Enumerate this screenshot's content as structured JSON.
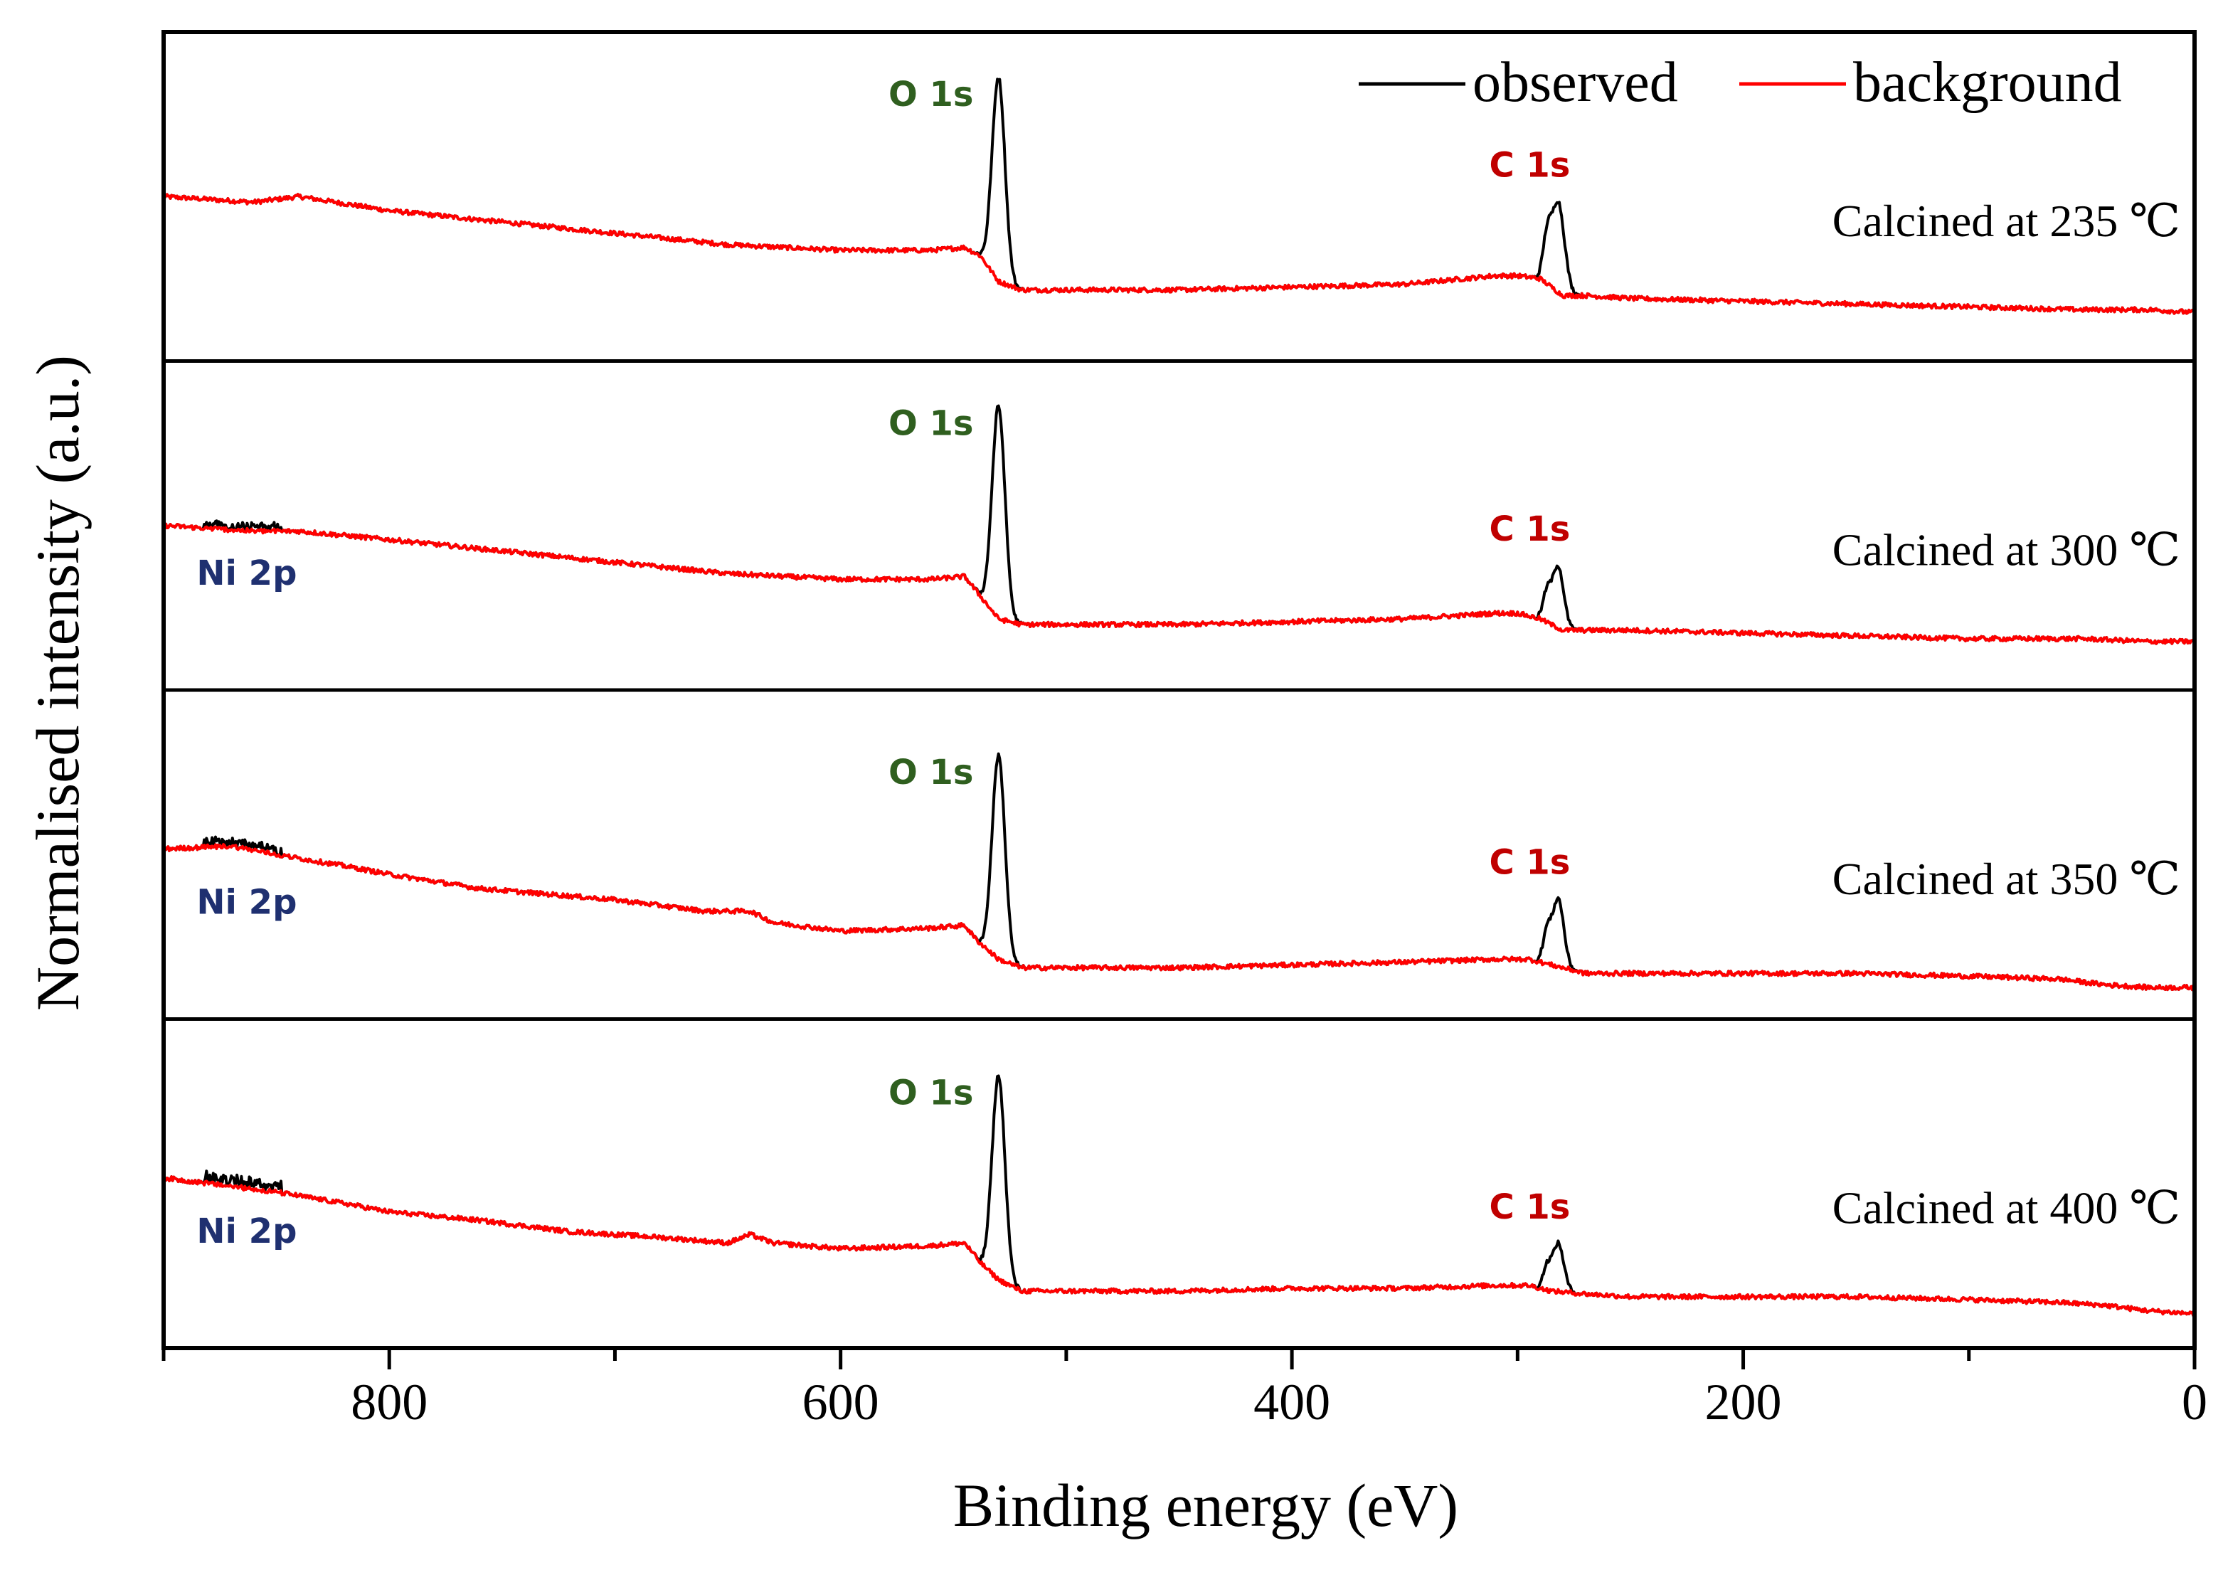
{
  "chart_data": {
    "type": "line",
    "title": "",
    "xlabel": "Binding energy (eV)",
    "ylabel": "Normalised intensity (a.u.)",
    "xlim": [
      900,
      0
    ],
    "xticks": [
      800,
      600,
      400,
      200,
      0
    ],
    "minor_xticks": [
      900,
      700,
      500,
      300,
      100
    ],
    "legend": {
      "position": "top-right",
      "entries": [
        {
          "name": "observed",
          "color": "#000000"
        },
        {
          "name": "background",
          "color": "#ff0000"
        }
      ]
    },
    "series_colors": {
      "observed": "#000000",
      "background": "#ff0000"
    },
    "panels": [
      {
        "label": "Calcined at 235 ℃",
        "ylim": [
          0,
          100
        ],
        "background": [
          [
            900,
            50
          ],
          [
            860,
            48
          ],
          [
            840,
            50
          ],
          [
            800,
            45
          ],
          [
            750,
            41
          ],
          [
            700,
            37
          ],
          [
            650,
            33
          ],
          [
            600,
            31
          ],
          [
            560,
            31
          ],
          [
            545,
            32
          ],
          [
            538,
            29
          ],
          [
            530,
            20
          ],
          [
            520,
            17
          ],
          [
            500,
            17
          ],
          [
            450,
            17
          ],
          [
            400,
            18
          ],
          [
            350,
            19
          ],
          [
            310,
            22
          ],
          [
            300,
            22
          ],
          [
            290,
            21
          ],
          [
            280,
            15
          ],
          [
            270,
            15
          ],
          [
            250,
            14
          ],
          [
            200,
            13
          ],
          [
            150,
            12
          ],
          [
            100,
            11
          ],
          [
            50,
            10
          ],
          [
            20,
            10
          ],
          [
            0,
            9
          ]
        ],
        "peaks": [
          {
            "label": "O 1s",
            "label_color": "#2f5f1f",
            "center": 530,
            "width": 4,
            "height": 72
          },
          {
            "label": "C 1s",
            "label_color": "#c00000",
            "center": 282,
            "width": 4,
            "height": 32
          }
        ]
      },
      {
        "label": "Calcined at 300 ℃",
        "ylim": [
          0,
          100
        ],
        "background": [
          [
            900,
            50
          ],
          [
            860,
            48
          ],
          [
            840,
            48
          ],
          [
            800,
            45
          ],
          [
            750,
            41
          ],
          [
            700,
            37
          ],
          [
            650,
            33
          ],
          [
            600,
            31
          ],
          [
            560,
            31
          ],
          [
            545,
            32
          ],
          [
            538,
            25
          ],
          [
            530,
            17
          ],
          [
            520,
            15
          ],
          [
            500,
            15
          ],
          [
            450,
            15
          ],
          [
            400,
            16
          ],
          [
            350,
            17
          ],
          [
            310,
            19
          ],
          [
            300,
            19
          ],
          [
            290,
            17
          ],
          [
            280,
            13
          ],
          [
            270,
            13
          ],
          [
            250,
            13
          ],
          [
            200,
            12
          ],
          [
            150,
            11
          ],
          [
            100,
            10
          ],
          [
            50,
            10
          ],
          [
            20,
            9
          ],
          [
            0,
            9
          ]
        ],
        "peaks": [
          {
            "label": "O 1s",
            "label_color": "#2f5f1f",
            "center": 530,
            "width": 4,
            "height": 75
          },
          {
            "label": "C 1s",
            "label_color": "#c00000",
            "center": 282,
            "width": 3.5,
            "height": 22
          },
          {
            "label": "Ni 2p",
            "label_color": "#1f3070",
            "center": 860,
            "width": 15,
            "height": 3
          }
        ]
      },
      {
        "label": "Calcined at 350 ℃",
        "ylim": [
          0,
          100
        ],
        "background": [
          [
            900,
            52
          ],
          [
            870,
            53
          ],
          [
            850,
            50
          ],
          [
            820,
            46
          ],
          [
            800,
            43
          ],
          [
            760,
            38
          ],
          [
            700,
            34
          ],
          [
            660,
            30
          ],
          [
            640,
            30
          ],
          [
            630,
            26
          ],
          [
            600,
            23
          ],
          [
            560,
            24
          ],
          [
            545,
            25
          ],
          [
            540,
            20
          ],
          [
            530,
            13
          ],
          [
            520,
            10
          ],
          [
            500,
            10
          ],
          [
            450,
            10
          ],
          [
            400,
            11
          ],
          [
            350,
            12
          ],
          [
            310,
            13
          ],
          [
            295,
            13
          ],
          [
            285,
            11
          ],
          [
            270,
            8
          ],
          [
            250,
            8
          ],
          [
            200,
            8
          ],
          [
            150,
            8
          ],
          [
            100,
            7
          ],
          [
            60,
            6
          ],
          [
            40,
            4
          ],
          [
            20,
            3
          ],
          [
            0,
            3
          ]
        ],
        "peaks": [
          {
            "label": "O 1s",
            "label_color": "#2f5f1f",
            "center": 530,
            "width": 4,
            "height": 72
          },
          {
            "label": "C 1s",
            "label_color": "#c00000",
            "center": 282,
            "width": 3.5,
            "height": 24
          },
          {
            "label": "Ni 2p",
            "label_color": "#1f3070",
            "center": 860,
            "width": 15,
            "height": 4
          }
        ]
      },
      {
        "label": "Calcined at 400 ℃",
        "ylim": [
          0,
          100
        ],
        "background": [
          [
            900,
            52
          ],
          [
            870,
            49
          ],
          [
            850,
            47
          ],
          [
            820,
            43
          ],
          [
            800,
            40
          ],
          [
            760,
            37
          ],
          [
            720,
            33
          ],
          [
            680,
            31
          ],
          [
            650,
            29
          ],
          [
            640,
            32
          ],
          [
            630,
            29
          ],
          [
            600,
            27
          ],
          [
            560,
            28
          ],
          [
            545,
            29
          ],
          [
            538,
            22
          ],
          [
            530,
            16
          ],
          [
            520,
            12
          ],
          [
            500,
            12
          ],
          [
            450,
            12
          ],
          [
            400,
            13
          ],
          [
            350,
            13
          ],
          [
            310,
            14
          ],
          [
            295,
            14
          ],
          [
            285,
            12
          ],
          [
            270,
            11
          ],
          [
            250,
            10
          ],
          [
            200,
            10
          ],
          [
            150,
            10
          ],
          [
            100,
            9
          ],
          [
            60,
            8
          ],
          [
            40,
            7
          ],
          [
            20,
            5
          ],
          [
            0,
            4
          ]
        ],
        "peaks": [
          {
            "label": "O 1s",
            "label_color": "#2f5f1f",
            "center": 530,
            "width": 4,
            "height": 72
          },
          {
            "label": "C 1s",
            "label_color": "#c00000",
            "center": 282,
            "width": 3.5,
            "height": 17
          },
          {
            "label": "Ni 2p",
            "label_color": "#1f3070",
            "center": 860,
            "width": 15,
            "height": 5
          }
        ]
      }
    ]
  }
}
